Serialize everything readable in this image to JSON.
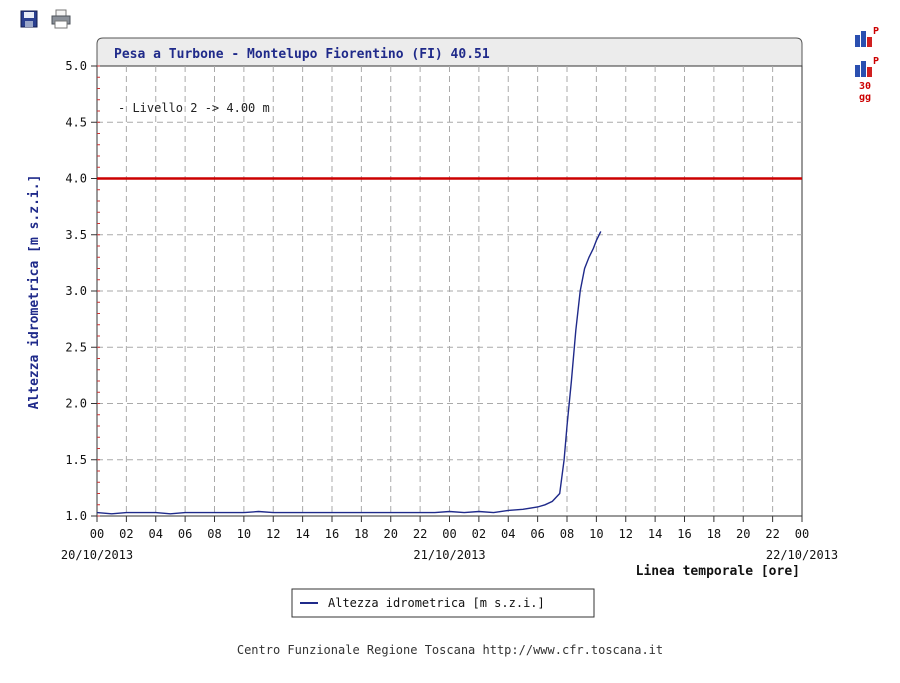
{
  "toolbar": {
    "save_icon": "floppy-disk-icon",
    "print_icon": "printer-icon"
  },
  "side_buttons": {
    "chart_badge": "P",
    "chart30_badge": "P",
    "chart30_days": "30",
    "chart30_unit": "gg"
  },
  "footer": {
    "text": "Centro Funzionale Regione Toscana http://www.cfr.toscana.it"
  },
  "chart_data": {
    "type": "line",
    "title": "Pesa a Turbone - Montelupo Fiorentino (FI) 40.51",
    "ylabel": "Altezza idrometrica [m s.z.i.]",
    "xlabel": "Linea temporale [ore]",
    "ylim": [
      1.0,
      5.0
    ],
    "yticks": [
      "1.0",
      "1.5",
      "2.0",
      "2.5",
      "3.0",
      "3.5",
      "4.0",
      "4.5",
      "5.0"
    ],
    "xlim_hours": [
      0,
      48
    ],
    "xticks": [
      "00",
      "02",
      "04",
      "06",
      "08",
      "10",
      "12",
      "14",
      "16",
      "18",
      "20",
      "22",
      "00",
      "02",
      "04",
      "06",
      "08",
      "10",
      "12",
      "14",
      "16",
      "18",
      "20",
      "22",
      "00"
    ],
    "date_labels": [
      {
        "text": "20/10/2013",
        "hour": 0
      },
      {
        "text": "21/10/2013",
        "hour": 24
      },
      {
        "text": "22/10/2013",
        "hour": 48
      }
    ],
    "grid": true,
    "legend_position": "bottom",
    "threshold": {
      "label": "- Livello 2 -> 4.00 m",
      "value": 4.0,
      "color": "#cc0000"
    },
    "series": [
      {
        "name": "Altezza idrometrica [m s.z.i.]",
        "color": "#1f2a8a",
        "x": [
          0,
          1,
          2,
          3,
          4,
          5,
          6,
          7,
          8,
          9,
          10,
          11,
          12,
          13,
          14,
          15,
          16,
          17,
          18,
          19,
          20,
          21,
          22,
          23,
          24,
          25,
          26,
          27,
          28,
          29,
          30,
          30.5,
          31,
          31.5,
          31.8,
          32,
          32.3,
          32.6,
          32.9,
          33.2,
          33.5,
          33.8,
          34,
          34.3
        ],
        "y": [
          1.03,
          1.02,
          1.03,
          1.03,
          1.03,
          1.02,
          1.03,
          1.03,
          1.03,
          1.03,
          1.03,
          1.04,
          1.03,
          1.03,
          1.03,
          1.03,
          1.03,
          1.03,
          1.03,
          1.03,
          1.03,
          1.03,
          1.03,
          1.03,
          1.04,
          1.03,
          1.04,
          1.03,
          1.05,
          1.06,
          1.08,
          1.1,
          1.13,
          1.2,
          1.5,
          1.8,
          2.2,
          2.65,
          3.0,
          3.2,
          3.3,
          3.38,
          3.45,
          3.53
        ]
      }
    ]
  }
}
